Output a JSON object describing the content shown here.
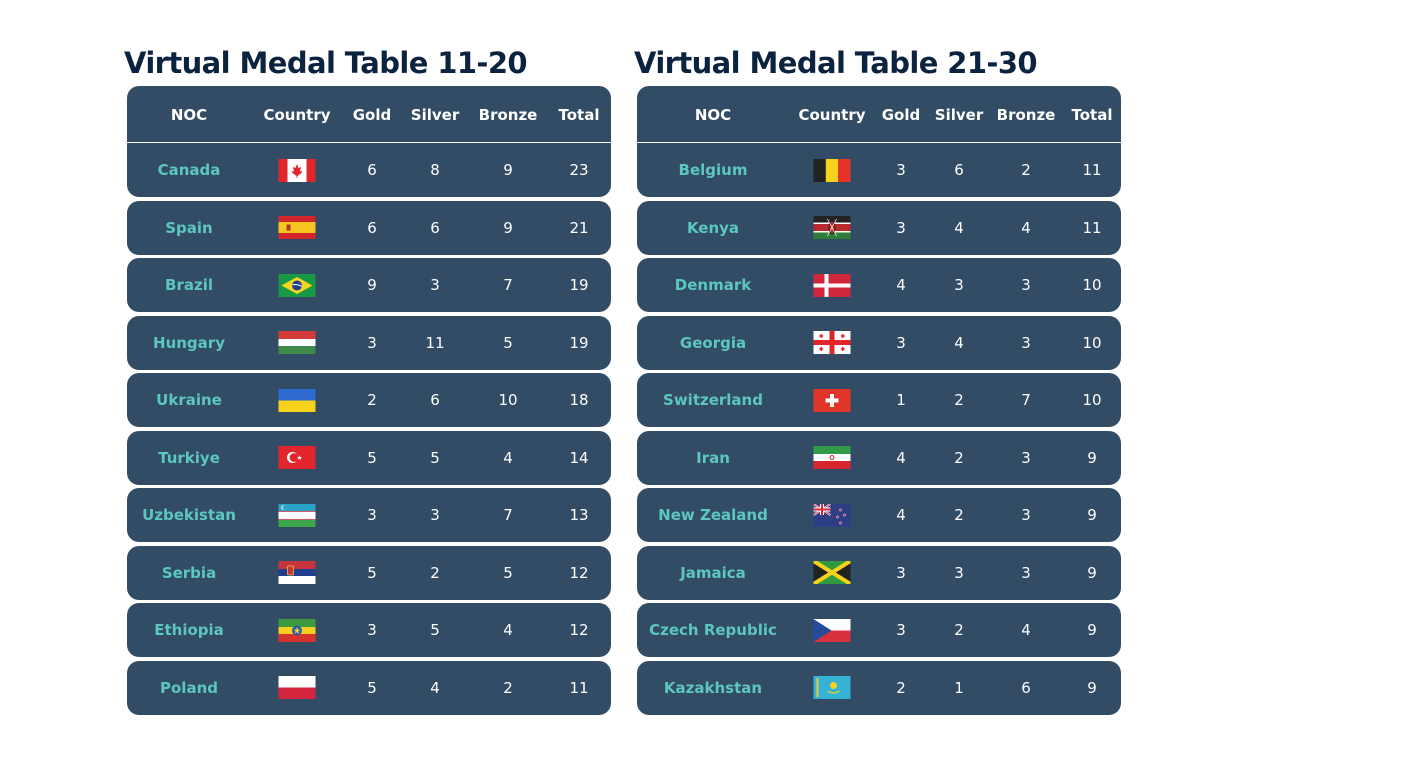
{
  "colors": {
    "title": "#0c2340",
    "table_bg": "#324c66",
    "country_text": "#5cc6c1",
    "value_text": "#ffffff"
  },
  "tables": [
    {
      "title": "Virtual Medal Table 11-20",
      "headers": {
        "noc": "NOC",
        "country": "Country",
        "gold": "Gold",
        "silver": "Silver",
        "bronze": "Bronze",
        "total": "Total"
      },
      "rows": [
        {
          "noc": "Canada",
          "flag": "canada-flag-icon",
          "gold": "6",
          "silver": "8",
          "bronze": "9",
          "total": "23"
        },
        {
          "noc": "Spain",
          "flag": "spain-flag-icon",
          "gold": "6",
          "silver": "6",
          "bronze": "9",
          "total": "21"
        },
        {
          "noc": "Brazil",
          "flag": "brazil-flag-icon",
          "gold": "9",
          "silver": "3",
          "bronze": "7",
          "total": "19"
        },
        {
          "noc": "Hungary",
          "flag": "hungary-flag-icon",
          "gold": "3",
          "silver": "11",
          "bronze": "5",
          "total": "19"
        },
        {
          "noc": "Ukraine",
          "flag": "ukraine-flag-icon",
          "gold": "2",
          "silver": "6",
          "bronze": "10",
          "total": "18"
        },
        {
          "noc": "Turkiye",
          "flag": "turkiye-flag-icon",
          "gold": "5",
          "silver": "5",
          "bronze": "4",
          "total": "14"
        },
        {
          "noc": "Uzbekistan",
          "flag": "uzbekistan-flag-icon",
          "gold": "3",
          "silver": "3",
          "bronze": "7",
          "total": "13"
        },
        {
          "noc": "Serbia",
          "flag": "serbia-flag-icon",
          "gold": "5",
          "silver": "2",
          "bronze": "5",
          "total": "12"
        },
        {
          "noc": "Ethiopia",
          "flag": "ethiopia-flag-icon",
          "gold": "3",
          "silver": "5",
          "bronze": "4",
          "total": "12"
        },
        {
          "noc": "Poland",
          "flag": "poland-flag-icon",
          "gold": "5",
          "silver": "4",
          "bronze": "2",
          "total": "11"
        }
      ]
    },
    {
      "title": "Virtual Medal Table 21-30",
      "headers": {
        "noc": "NOC",
        "country": "Country",
        "gold": "Gold",
        "silver": "Silver",
        "bronze": "Bronze",
        "total": "Total"
      },
      "rows": [
        {
          "noc": "Belgium",
          "flag": "belgium-flag-icon",
          "gold": "3",
          "silver": "6",
          "bronze": "2",
          "total": "11"
        },
        {
          "noc": "Kenya",
          "flag": "kenya-flag-icon",
          "gold": "3",
          "silver": "4",
          "bronze": "4",
          "total": "11"
        },
        {
          "noc": "Denmark",
          "flag": "denmark-flag-icon",
          "gold": "4",
          "silver": "3",
          "bronze": "3",
          "total": "10"
        },
        {
          "noc": "Georgia",
          "flag": "georgia-flag-icon",
          "gold": "3",
          "silver": "4",
          "bronze": "3",
          "total": "10"
        },
        {
          "noc": "Switzerland",
          "flag": "switzerland-flag-icon",
          "gold": "1",
          "silver": "2",
          "bronze": "7",
          "total": "10"
        },
        {
          "noc": "Iran",
          "flag": "iran-flag-icon",
          "gold": "4",
          "silver": "2",
          "bronze": "3",
          "total": "9"
        },
        {
          "noc": "New Zealand",
          "flag": "new-zealand-flag-icon",
          "gold": "4",
          "silver": "2",
          "bronze": "3",
          "total": "9"
        },
        {
          "noc": "Jamaica",
          "flag": "jamaica-flag-icon",
          "gold": "3",
          "silver": "3",
          "bronze": "3",
          "total": "9"
        },
        {
          "noc": "Czech Republic",
          "flag": "czech-republic-flag-icon",
          "gold": "3",
          "silver": "2",
          "bronze": "4",
          "total": "9"
        },
        {
          "noc": "Kazakhstan",
          "flag": "kazakhstan-flag-icon",
          "gold": "2",
          "silver": "1",
          "bronze": "6",
          "total": "9"
        }
      ]
    }
  ]
}
